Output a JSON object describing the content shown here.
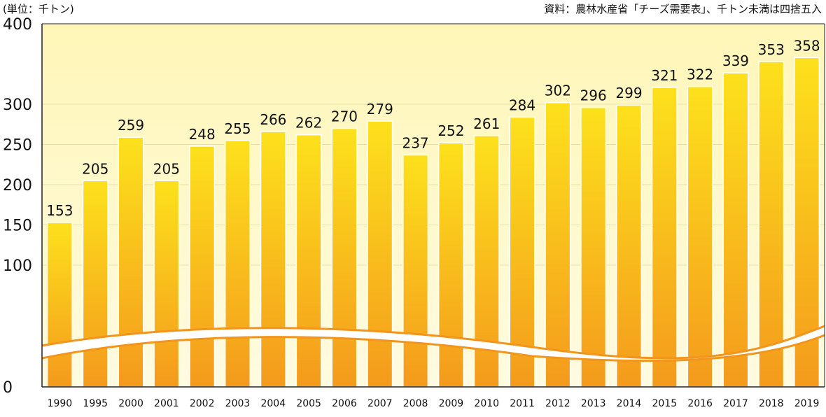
{
  "header": {
    "unit_label": "(単位：千トン)",
    "source_label": "資料：農林水産省「チーズ需要表」、千トン未満は四捨五入"
  },
  "colors": {
    "plot_top": "#fff6b8",
    "plot_bottom": "#fffbe0",
    "bar_top": "#fde11c",
    "bar_bottom": "#f49a1c",
    "bar_edge": "#ffffff",
    "wave_stroke": "#f2951c",
    "gridline": "#e9dfa0"
  },
  "chart_data": {
    "type": "bar",
    "title": "",
    "xlabel": "",
    "ylabel": "",
    "y_axis_break": true,
    "ylim": [
      0,
      400
    ],
    "yticks": [
      "0",
      "100",
      "150",
      "200",
      "250",
      "300",
      "400"
    ],
    "categories": [
      "1990",
      "1995",
      "2000",
      "2001",
      "2002",
      "2003",
      "2004",
      "2005",
      "2006",
      "2007",
      "2008",
      "2009",
      "2010",
      "2011",
      "2012",
      "2013",
      "2014",
      "2015",
      "2016",
      "2017",
      "2018",
      "2019"
    ],
    "values": [
      153,
      205,
      259,
      205,
      248,
      255,
      266,
      262,
      270,
      279,
      237,
      252,
      261,
      284,
      302,
      296,
      299,
      321,
      322,
      339,
      353,
      358
    ],
    "grid": true,
    "legend": "none"
  }
}
